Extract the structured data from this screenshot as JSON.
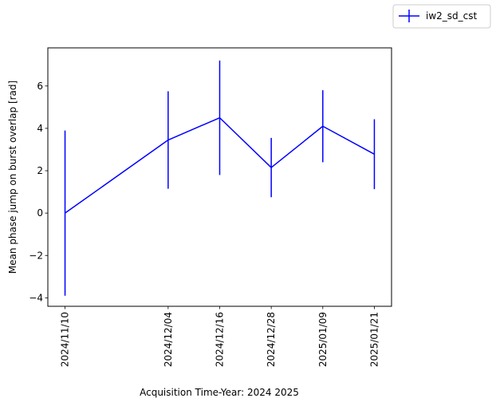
{
  "chart_data": {
    "type": "line",
    "x": [
      "2024/11/10",
      "2024/12/04",
      "2024/12/16",
      "2024/12/28",
      "2025/01/09",
      "2025/01/21"
    ],
    "xticks": [
      "2024/11/10",
      "2024/12/04",
      "2024/12/16",
      "2024/12/28",
      "2025/01/09",
      "2025/01/21"
    ],
    "series": [
      {
        "name": "iw2_sd_cst",
        "color": "#0000ff",
        "values": [
          0.0,
          3.45,
          4.5,
          2.15,
          4.1,
          2.78
        ],
        "error": [
          3.9,
          2.3,
          2.7,
          1.4,
          1.7,
          1.65
        ]
      }
    ],
    "xlabel": "Acquisition Time-Year: 2024 2025",
    "ylabel": "Mean phase jump on burst overlap [rad]",
    "yticks": [
      -4,
      -2,
      0,
      2,
      4,
      6
    ],
    "ytick_labels": [
      "−4",
      "−2",
      "0",
      "2",
      "4",
      "6"
    ],
    "ylim": [
      -4.4,
      7.8
    ],
    "xlim": [
      "2024/11/06",
      "2025/01/25"
    ],
    "grid": false,
    "legend_position": "top-right-outside"
  }
}
